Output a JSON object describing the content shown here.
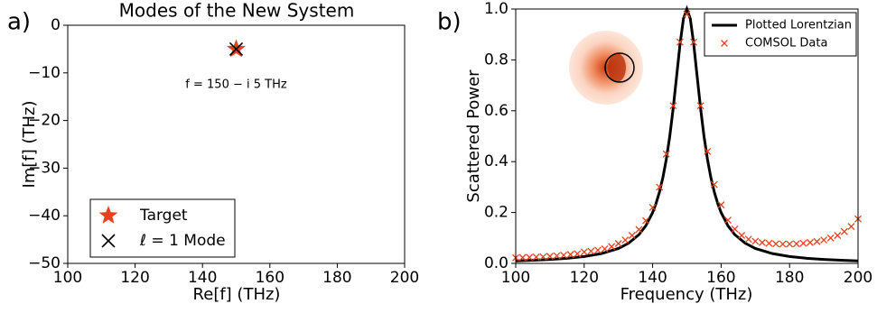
{
  "chart_data": [
    {
      "type": "scatter",
      "panel_label": "a)",
      "title": "Modes of the New System",
      "x_label": "Re[f] (THz)",
      "y_label": "Im[f] (THz)",
      "xlim": [
        100,
        200
      ],
      "xticks": [
        100,
        120,
        140,
        160,
        180,
        200
      ],
      "ylim": [
        -50,
        0
      ],
      "yticks": [
        0,
        {
          "value": -10,
          "label": "−10"
        },
        {
          "value": -20,
          "label": "−20"
        },
        {
          "value": -30,
          "label": "−30"
        },
        {
          "value": -40,
          "label": "−40"
        },
        {
          "value": -50,
          "label": "−50"
        }
      ],
      "legend": "lower left",
      "annotation": {
        "text": "f = 150 − i 5 THz",
        "x": 150,
        "y": -10
      },
      "series": [
        {
          "name": "Target",
          "marker": "star",
          "color": "#e8401c",
          "x": [
            150
          ],
          "values": [
            -5
          ]
        },
        {
          "name": "ℓ = 1 Mode",
          "marker": "x",
          "color": "#000000",
          "x": [
            150
          ],
          "values": [
            -5
          ]
        }
      ]
    },
    {
      "type": "line",
      "panel_label": "b)",
      "x_label": "Frequency (THz)",
      "y_label": "Scattered Power",
      "xlim": [
        100,
        200
      ],
      "xticks": [
        100,
        120,
        140,
        160,
        180,
        200
      ],
      "ylim": [
        0,
        1
      ],
      "yticks": [
        {
          "value": 0,
          "label": "0.0"
        },
        0.2,
        0.4,
        0.6,
        0.8,
        {
          "value": 1,
          "label": "1.0"
        }
      ],
      "legend": "upper right",
      "series": [
        {
          "name": "Plotted Lorentzian",
          "marker": "line",
          "color": "#000000",
          "x": [
            100,
            105,
            110,
            115,
            120,
            125,
            130,
            133,
            136,
            138,
            140,
            141,
            142,
            143,
            144,
            145,
            146,
            147,
            148,
            149,
            150,
            151,
            152,
            153,
            154,
            155,
            156,
            157,
            158,
            159,
            160,
            162,
            164,
            167,
            170,
            175,
            180,
            185,
            190,
            195,
            200
          ],
          "values": [
            0.0099,
            0.0122,
            0.0154,
            0.02,
            0.027,
            0.0385,
            0.0588,
            0.0796,
            0.113,
            0.148,
            0.2,
            0.236,
            0.281,
            0.338,
            0.41,
            0.5,
            0.61,
            0.735,
            0.862,
            0.962,
            1,
            0.962,
            0.862,
            0.735,
            0.61,
            0.5,
            0.41,
            0.338,
            0.281,
            0.236,
            0.2,
            0.148,
            0.113,
            0.0796,
            0.0588,
            0.0385,
            0.027,
            0.02,
            0.0154,
            0.0122,
            0.0099
          ]
        },
        {
          "name": "COMSOL Data",
          "marker": "x",
          "color": "#e8401c",
          "x": [
            100,
            102,
            104,
            106,
            108,
            110,
            112,
            114,
            116,
            118,
            120,
            122,
            124,
            126,
            128,
            130,
            132,
            134,
            136,
            138,
            140,
            142,
            144,
            146,
            148,
            150,
            152,
            154,
            156,
            158,
            160,
            162,
            164,
            166,
            168,
            170,
            172,
            174,
            176,
            178,
            180,
            182,
            184,
            186,
            188,
            190,
            192,
            194,
            196,
            198,
            200
          ],
          "values": [
            0.022,
            0.023,
            0.024,
            0.025,
            0.026,
            0.028,
            0.03,
            0.032,
            0.035,
            0.038,
            0.045,
            0.048,
            0.052,
            0.057,
            0.066,
            0.078,
            0.092,
            0.11,
            0.133,
            0.168,
            0.22,
            0.3,
            0.43,
            0.62,
            0.87,
            0.98,
            0.87,
            0.62,
            0.44,
            0.31,
            0.23,
            0.17,
            0.135,
            0.11,
            0.095,
            0.087,
            0.082,
            0.079,
            0.077,
            0.076,
            0.076,
            0.077,
            0.079,
            0.082,
            0.086,
            0.092,
            0.1,
            0.11,
            0.125,
            0.145,
            0.175
          ]
        }
      ]
    }
  ]
}
